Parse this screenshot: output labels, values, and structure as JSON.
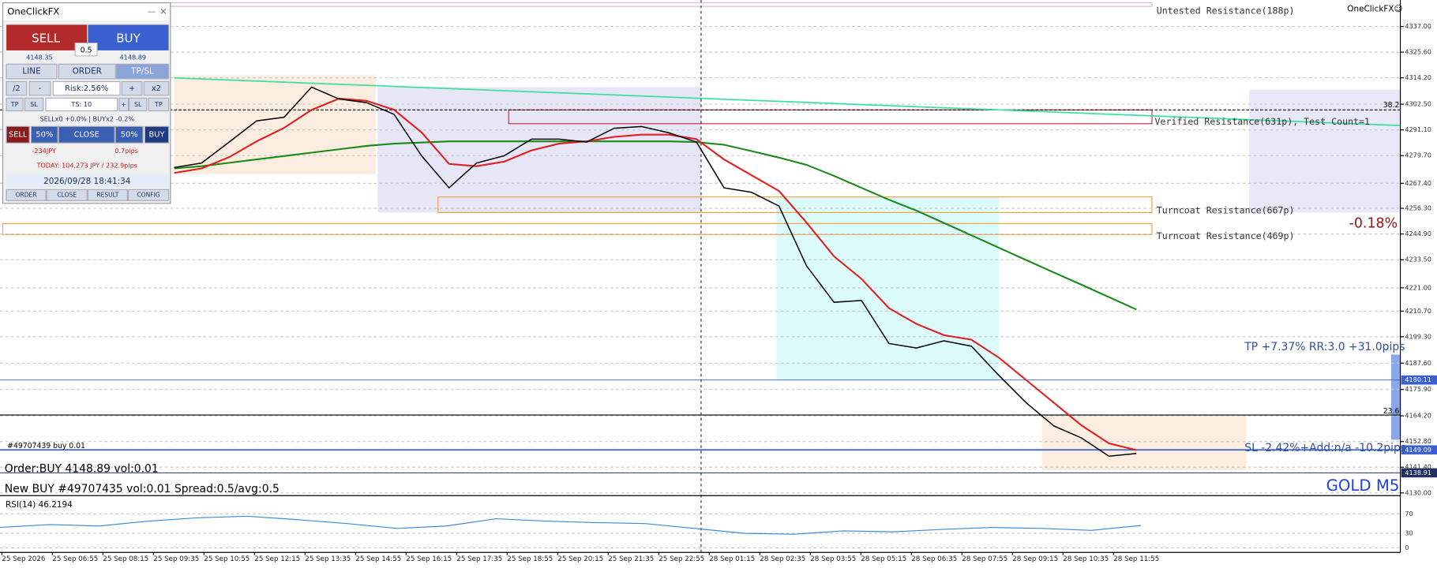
{
  "panel": {
    "title": "OneClickFX",
    "minimize": "—",
    "close": "✕",
    "sell": "SELL",
    "buy": "BUY",
    "lot": "0.5",
    "bid": "4148.35",
    "ask": "4148.89",
    "tabs": [
      "LINE",
      "ORDER",
      "TP/SL"
    ],
    "risk_row": [
      "/2",
      "-",
      "Risk:2.56%",
      "+",
      "x2"
    ],
    "ts_row": [
      "TP",
      "SL",
      "TS: 10",
      "+",
      "SL",
      "TP"
    ],
    "positions": "SELLx0 +0.0% | BUYx2 -0.2%",
    "close_row": [
      "SELL",
      "50%",
      "CLOSE",
      "50%",
      "BUY"
    ],
    "profit": "-234JPY",
    "pips": "0.7pips",
    "today": "TODAY: 104,273 JPY / 232.9pips",
    "datetime": "2026/09/28  18:41:34",
    "footer": [
      "ORDER",
      "CLOSE",
      "RESULT",
      "CONFIG"
    ]
  },
  "chart": {
    "symbol": "GOLD M5",
    "brand": "OneClickFX☺",
    "change": "-0.18%",
    "zones": [
      "Untested Resistance(188p)",
      "Verified Resistance(631p), Test Count=1",
      "Turncoat Resistance(667p)",
      "Turncoat Resistance(469p)"
    ],
    "tp_label": "TP +7.37% RR:3.0 +31.0pips",
    "sl_label": "SL -2.42%+Add:n/a -10.2pips",
    "fib": [
      "38.2",
      "23.6"
    ],
    "ticket": "#49707439 buy 0.01",
    "order_msg": "Order:BUY 4148.89 vol:0.01",
    "new_msg": "New BUY #49707435 vol:0.01 Spread:0.5/avg:0.5",
    "price_range": [
      4129.2,
      4348.75
    ],
    "price_ticks": [
      {
        "value": 4337.0,
        "label": "4337.00"
      },
      {
        "value": 4325.6,
        "label": "4325.60"
      },
      {
        "value": 4314.2,
        "label": "4314.20"
      },
      {
        "value": 4302.5,
        "label": "4302.50"
      },
      {
        "value": 4291.1,
        "label": "4291.10"
      },
      {
        "value": 4279.7,
        "label": "4279.70"
      },
      {
        "value": 4267.4,
        "label": "4267.40"
      },
      {
        "value": 4256.3,
        "label": "4256.30"
      },
      {
        "value": 4244.9,
        "label": "4244.90"
      },
      {
        "value": 4233.5,
        "label": "4233.50"
      },
      {
        "value": 4221.0,
        "label": "4221.00"
      },
      {
        "value": 4210.7,
        "label": "4210.70"
      },
      {
        "value": 4199.3,
        "label": "4199.30"
      },
      {
        "value": 4187.6,
        "label": "4187.60"
      },
      {
        "value": 4175.9,
        "label": "4175.90"
      },
      {
        "value": 4164.2,
        "label": "4164.20"
      },
      {
        "value": 4152.8,
        "label": "4152.80"
      },
      {
        "value": 4141.4,
        "label": "4141.40"
      },
      {
        "value": 4130.0,
        "label": "4130.00"
      }
    ],
    "levels": [
      4180.11,
      4149.09,
      4138.91
    ],
    "closes": [
      4274.4,
      4276.4,
      4285.7,
      4295.1,
      4296.7,
      4310.1,
      4304.8,
      4303.2,
      4298.0,
      4279.6,
      4265.4,
      4276.4,
      4279.6,
      4287.0,
      4287.0,
      4285.7,
      4291.8,
      4292.6,
      4289.8,
      4285.7,
      4265.4,
      4263.4,
      4257.3,
      4230.8,
      4214.6,
      4215.4,
      4196.3,
      4194.3,
      4197.5,
      4195.1,
      4182.1,
      4169.9,
      4159.7,
      4154.4,
      4146.3,
      4147.5
    ],
    "ema_fast": [
      4272,
      4274,
      4279,
      4286,
      4292,
      4300,
      4305,
      4304,
      4300,
      4290,
      4276,
      4275,
      4277,
      4282,
      4285,
      4286,
      4288,
      4289,
      4289,
      4287,
      4278,
      4271,
      4264,
      4250,
      4235,
      4225,
      4212,
      4205,
      4200,
      4198,
      4190,
      4180,
      4170,
      4160,
      4152,
      4149
    ],
    "ema_slow": [
      4274,
      4275,
      4276.5,
      4278,
      4279.5,
      4281,
      4282.5,
      4284,
      4285,
      4285.5,
      4286,
      4286,
      4286,
      4286,
      4286,
      4286,
      4286,
      4286,
      4286,
      4285.7,
      4284.5,
      4281.7,
      4278.8,
      4275.6,
      4270.7,
      4265.4,
      4260.1,
      4255.3,
      4249.8,
      4244.3,
      4238.8,
      4233.3,
      4227.8,
      4222.4,
      4216.9,
      4211.4
    ],
    "times": [
      "25 Sep 2026",
      "25 Sep 06:55",
      "25 Sep 08:15",
      "25 Sep 09:35",
      "25 Sep 10:55",
      "25 Sep 12:15",
      "25 Sep 13:35",
      "25 Sep 14:55",
      "25 Sep 16:15",
      "25 Sep 17:35",
      "25 Sep 18:55",
      "25 Sep 20:15",
      "25 Sep 21:35",
      "25 Sep 22:55",
      "28 Sep 01:15",
      "28 Sep 02:35",
      "28 Sep 03:55",
      "28 Sep 05:15",
      "28 Sep 06:35",
      "28 Sep 07:55",
      "28 Sep 09:15",
      "28 Sep 10:35",
      "28 Sep 11:55"
    ]
  },
  "rsi": {
    "label": "RSI(14) 46.2194",
    "range": [
      0,
      100
    ],
    "ticks": [
      70,
      30,
      0
    ],
    "values": [
      42,
      48,
      45,
      55,
      62,
      65,
      58,
      50,
      40,
      45,
      60,
      55,
      52,
      50,
      40,
      30,
      28,
      35,
      33,
      38,
      42,
      40,
      36,
      46
    ]
  }
}
